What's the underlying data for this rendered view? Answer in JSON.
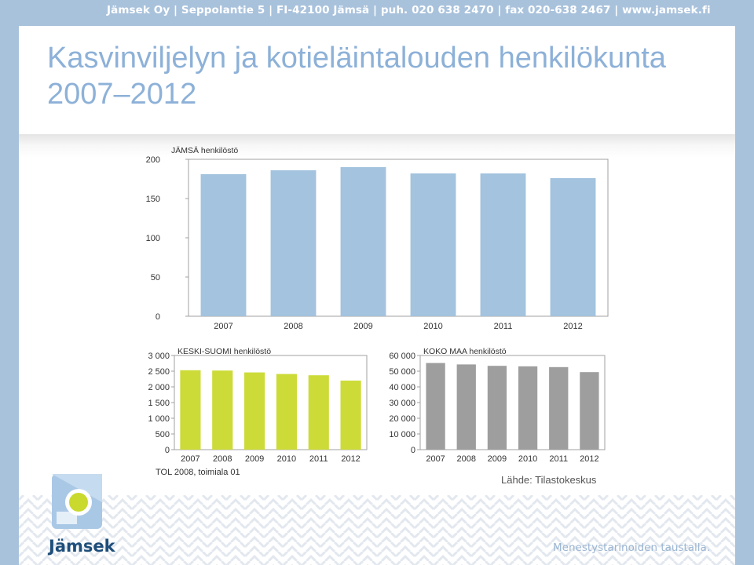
{
  "header": {
    "contact_line": "Jämsek Oy  |  Seppolantie 5  |  FI-42100 Jämsä  |  puh. 020 638 2470  |  fax 020-638 2467  |  www.jamsek.fi"
  },
  "page": {
    "title": "Kasvinviljelyn ja kotieläintalouden henkilökunta 2007–2012",
    "footnote": "TOL 2008, toimiala 01",
    "source": "Lähde: Tilastokeskus",
    "logo_text": "Jämsek",
    "slogan": "Menestystarinoiden taustalla."
  },
  "colors": {
    "brand_blue": "#8db1d8",
    "jamsa_bar": "#a3c3de",
    "ks_bar": "#ccdb38",
    "koko_bar": "#9e9e9e"
  },
  "icons": {
    "logo": "jamsek-logo-icon"
  },
  "chart_data": [
    {
      "type": "bar",
      "title": "JÄMSÄ henkilöstö",
      "categories": [
        "2007",
        "2008",
        "2009",
        "2010",
        "2011",
        "2012"
      ],
      "values": [
        181,
        186,
        190,
        182,
        182,
        176
      ],
      "ylim": [
        0,
        200
      ],
      "yticks": [
        "0",
        "50",
        "100",
        "150",
        "200"
      ],
      "grid": false
    },
    {
      "type": "bar",
      "title": "KESKI-SUOMI henkilöstö",
      "categories": [
        "2007",
        "2008",
        "2009",
        "2010",
        "2011",
        "2012"
      ],
      "values": [
        2530,
        2520,
        2460,
        2410,
        2370,
        2200
      ],
      "ylim": [
        0,
        3000
      ],
      "yticks": [
        "0",
        "500",
        "1 000",
        "1 500",
        "2 000",
        "2 500",
        "3 000"
      ],
      "grid": false
    },
    {
      "type": "bar",
      "title": "KOKO MAA henkilöstö",
      "categories": [
        "2007",
        "2008",
        "2009",
        "2010",
        "2011",
        "2012"
      ],
      "values": [
        55200,
        54300,
        53400,
        53100,
        52600,
        49400
      ],
      "ylim": [
        0,
        60000
      ],
      "yticks": [
        "0",
        "10 000",
        "20 000",
        "30 000",
        "40 000",
        "50 000",
        "60 000"
      ],
      "grid": false
    }
  ]
}
